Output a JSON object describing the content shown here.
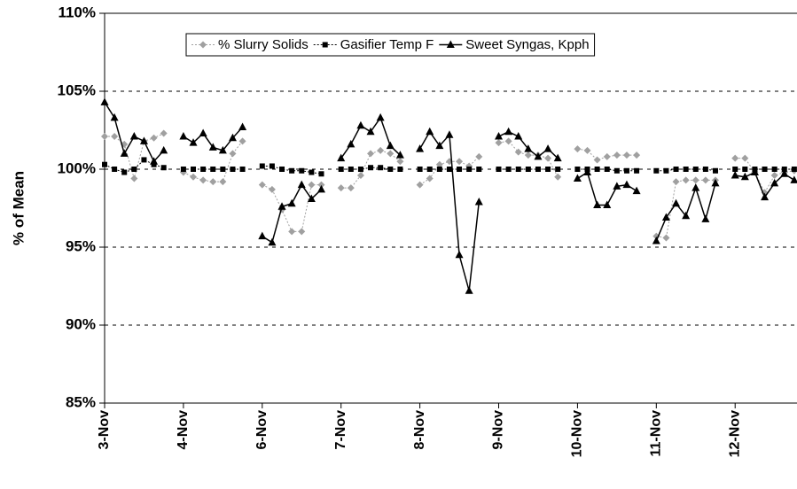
{
  "chart_data": {
    "type": "line",
    "ylabel": "% of Mean",
    "x": [
      0,
      0.125,
      0.25,
      0.375,
      0.5,
      0.625,
      0.75,
      0.875,
      1,
      1.125,
      1.25,
      1.375,
      1.5,
      1.625,
      1.75,
      1.875,
      2,
      2.125,
      2.25,
      2.375,
      2.5,
      2.625,
      2.75,
      2.875,
      3,
      3.125,
      3.25,
      3.375,
      3.5,
      3.625,
      3.75,
      3.875,
      4,
      4.125,
      4.25,
      4.375,
      4.5,
      4.625,
      4.75,
      4.875,
      5,
      5.125,
      5.25,
      5.375,
      5.5,
      5.625,
      5.75,
      5.875,
      6,
      6.125,
      6.25,
      6.375,
      6.5,
      6.625,
      6.75,
      6.875,
      7,
      7.125,
      7.25,
      7.375,
      7.5,
      7.625,
      7.75,
      7.875,
      8,
      8.125,
      8.25,
      8.375,
      8.5,
      8.625,
      8.75
    ],
    "series": [
      {
        "name": "% Slurry Solids",
        "color": "#a0a0a0",
        "marker": "diamond",
        "dash": "2,2",
        "values": [
          102.1,
          102.1,
          101.6,
          99.4,
          101.8,
          102.0,
          102.3,
          null,
          99.8,
          99.5,
          99.3,
          99.2,
          99.2,
          101.0,
          101.8,
          null,
          99.0,
          98.7,
          97.4,
          96.0,
          96.0,
          99.0,
          99.0,
          null,
          98.8,
          98.8,
          99.6,
          101.0,
          101.2,
          101.0,
          100.5,
          null,
          99.0,
          99.4,
          100.3,
          100.5,
          100.5,
          100.2,
          100.8,
          null,
          101.7,
          101.8,
          101.1,
          100.9,
          100.9,
          100.7,
          99.5,
          null,
          101.3,
          101.2,
          100.6,
          100.8,
          100.9,
          100.9,
          100.9,
          null,
          95.7,
          95.6,
          99.2,
          99.3,
          99.3,
          99.3,
          99.3,
          null,
          100.7,
          100.7,
          99.8,
          98.5,
          99.6,
          99.8,
          99.9
        ]
      },
      {
        "name": "Gasifier Temp F",
        "color": "#000000",
        "marker": "square",
        "dash": "2,2",
        "values": [
          100.3,
          100.0,
          99.8,
          100.0,
          100.6,
          100.3,
          100.1,
          null,
          100.0,
          100.0,
          100.0,
          100.0,
          100.0,
          100.0,
          100.0,
          null,
          100.2,
          100.2,
          100.0,
          99.9,
          99.9,
          99.8,
          99.7,
          null,
          100.0,
          100.0,
          100.0,
          100.1,
          100.1,
          100.0,
          100.0,
          null,
          100.0,
          100.0,
          100.0,
          100.0,
          100.0,
          100.0,
          100.0,
          null,
          100.0,
          100.0,
          100.0,
          100.0,
          100.0,
          100.0,
          100.0,
          null,
          100.0,
          100.0,
          100.0,
          100.0,
          99.9,
          99.9,
          99.9,
          null,
          99.9,
          99.9,
          100.0,
          100.0,
          100.0,
          100.0,
          99.9,
          null,
          100.0,
          100.0,
          100.0,
          100.0,
          100.0,
          100.0,
          100.0
        ]
      },
      {
        "name": "Sweet Syngas, Kpph",
        "color": "#000000",
        "marker": "triangle",
        "dash": "none",
        "values": [
          104.3,
          103.3,
          101.0,
          102.1,
          101.8,
          100.5,
          101.2,
          null,
          102.1,
          101.7,
          102.3,
          101.4,
          101.2,
          102.0,
          102.7,
          null,
          95.7,
          95.3,
          97.6,
          97.8,
          99.0,
          98.1,
          98.7,
          null,
          100.7,
          101.6,
          102.8,
          102.4,
          103.3,
          101.5,
          100.9,
          null,
          101.3,
          102.4,
          101.5,
          102.2,
          94.5,
          92.2,
          97.9,
          null,
          102.1,
          102.4,
          102.1,
          101.3,
          100.8,
          101.3,
          100.7,
          null,
          99.4,
          99.8,
          97.7,
          97.7,
          98.9,
          99.0,
          98.6,
          null,
          95.4,
          96.9,
          97.8,
          97.0,
          98.8,
          96.8,
          99.1,
          null,
          99.6,
          99.5,
          99.8,
          98.2,
          99.1,
          99.7,
          99.3
        ]
      }
    ],
    "xlim": [
      0,
      8.785
    ],
    "xticks": [
      {
        "value": 0,
        "label": "3-Nov"
      },
      {
        "value": 1,
        "label": "4-Nov"
      },
      {
        "value": 2,
        "label": "6-Nov"
      },
      {
        "value": 3,
        "label": "7-Nov"
      },
      {
        "value": 4,
        "label": "8-Nov"
      },
      {
        "value": 5,
        "label": "9-Nov"
      },
      {
        "value": 6,
        "label": "10-Nov"
      },
      {
        "value": 7,
        "label": "11-Nov"
      },
      {
        "value": 8,
        "label": "12-Nov"
      }
    ],
    "ylim": [
      85,
      110
    ],
    "yticks": [
      {
        "value": 85,
        "label": "85%"
      },
      {
        "value": 90,
        "label": "90%"
      },
      {
        "value": 95,
        "label": "95%"
      },
      {
        "value": 100,
        "label": "100%"
      },
      {
        "value": 105,
        "label": "105%"
      },
      {
        "value": 110,
        "label": "110%"
      }
    ],
    "grid": true,
    "legend": "top"
  }
}
